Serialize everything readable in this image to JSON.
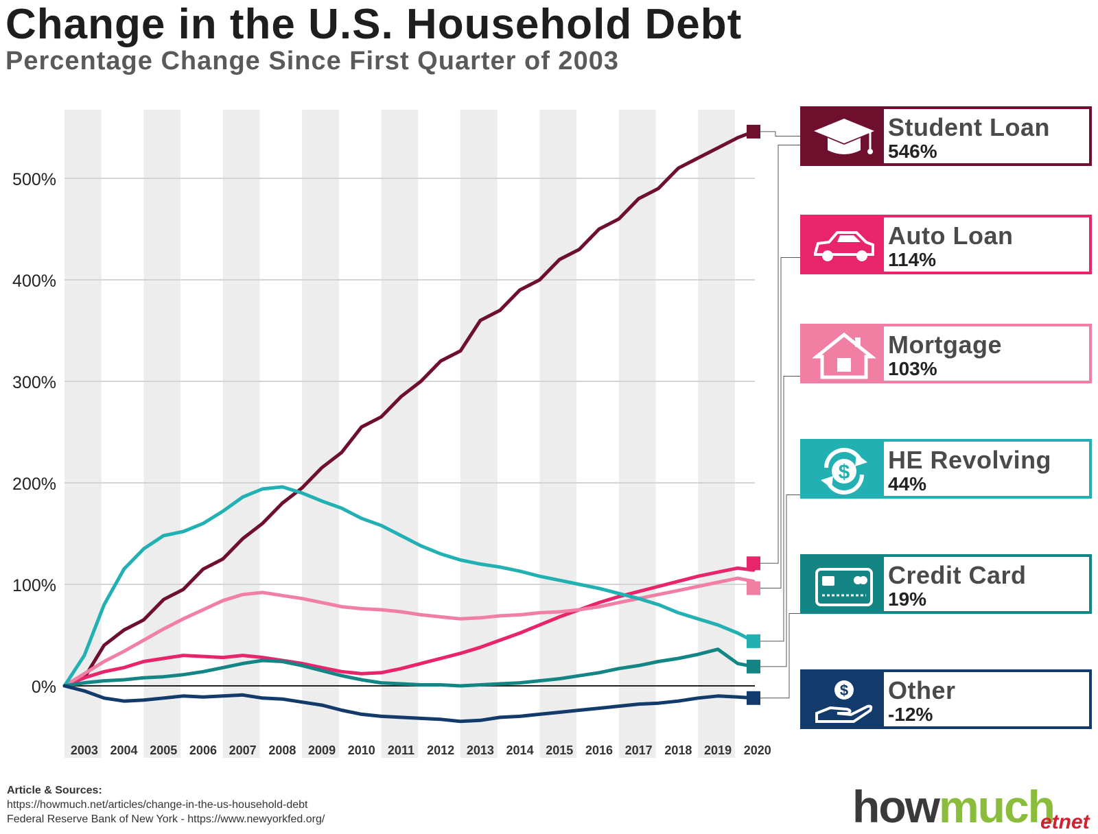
{
  "title": "Change in the U.S. Household Debt",
  "subtitle": "Percentage Change Since First Quarter of 2003",
  "chart_data": {
    "type": "line",
    "title": "Change in the U.S. Household Debt",
    "subtitle": "Percentage Change Since First Quarter of 2003",
    "x_categories": [
      "2003",
      "2004",
      "2005",
      "2006",
      "2007",
      "2008",
      "2009",
      "2010",
      "2011",
      "2012",
      "2013",
      "2014",
      "2015",
      "2016",
      "2017",
      "2018",
      "2019",
      "2020"
    ],
    "y_ticks": [
      0,
      100,
      200,
      300,
      400,
      500
    ],
    "y_tick_labels": [
      "0%",
      "100%",
      "200%",
      "300%",
      "400%",
      "500%"
    ],
    "ylim": [
      -40,
      560
    ],
    "alternating_year_bands": true,
    "legend_placement": "right",
    "series": [
      {
        "name": "Student Loan",
        "end_label": "546%",
        "color": "#6e0f2e",
        "x": [
          2003,
          2003.5,
          2004,
          2004.5,
          2005,
          2005.5,
          2006,
          2006.5,
          2007,
          2007.5,
          2008,
          2008.5,
          2009,
          2009.5,
          2010,
          2010.5,
          2011,
          2011.5,
          2012,
          2012.5,
          2013,
          2013.5,
          2014,
          2014.5,
          2015,
          2015.5,
          2016,
          2016.5,
          2017,
          2017.5,
          2018,
          2018.5,
          2019,
          2019.5,
          2020,
          2020.4
        ],
        "values": [
          0,
          8,
          40,
          55,
          65,
          85,
          95,
          115,
          125,
          145,
          160,
          180,
          195,
          215,
          230,
          255,
          265,
          285,
          300,
          320,
          330,
          360,
          370,
          390,
          400,
          420,
          430,
          450,
          460,
          480,
          490,
          510,
          520,
          530,
          540,
          546
        ]
      },
      {
        "name": "Auto Loan",
        "end_label": "114%",
        "color": "#e8246a",
        "x": [
          2003,
          2003.5,
          2004,
          2004.5,
          2005,
          2005.5,
          2006,
          2006.5,
          2007,
          2007.5,
          2008,
          2008.5,
          2009,
          2009.5,
          2010,
          2010.5,
          2011,
          2011.5,
          2012,
          2012.5,
          2013,
          2013.5,
          2014,
          2014.5,
          2015,
          2015.5,
          2016,
          2016.5,
          2017,
          2017.5,
          2018,
          2018.5,
          2019,
          2019.5,
          2020,
          2020.4
        ],
        "values": [
          0,
          8,
          14,
          18,
          24,
          27,
          30,
          29,
          28,
          30,
          28,
          25,
          22,
          18,
          14,
          12,
          13,
          17,
          22,
          27,
          32,
          38,
          45,
          52,
          60,
          68,
          75,
          82,
          88,
          93,
          98,
          103,
          108,
          112,
          116,
          114
        ]
      },
      {
        "name": "Mortgage",
        "end_label": "103%",
        "color": "#f07fa3",
        "x": [
          2003,
          2003.5,
          2004,
          2004.5,
          2005,
          2005.5,
          2006,
          2006.5,
          2007,
          2007.5,
          2008,
          2008.5,
          2009,
          2009.5,
          2010,
          2010.5,
          2011,
          2011.5,
          2012,
          2012.5,
          2013,
          2013.5,
          2014,
          2014.5,
          2015,
          2015.5,
          2016,
          2016.5,
          2017,
          2017.5,
          2018,
          2018.5,
          2019,
          2019.5,
          2020,
          2020.4
        ],
        "values": [
          0,
          12,
          24,
          34,
          45,
          56,
          66,
          75,
          84,
          90,
          92,
          89,
          86,
          82,
          78,
          76,
          75,
          73,
          70,
          68,
          66,
          67,
          69,
          70,
          72,
          73,
          75,
          78,
          82,
          86,
          90,
          94,
          98,
          102,
          106,
          103
        ]
      },
      {
        "name": "HE Revolving",
        "end_label": "44%",
        "color": "#22b0b2",
        "x": [
          2003,
          2003.5,
          2004,
          2004.5,
          2005,
          2005.5,
          2006,
          2006.5,
          2007,
          2007.5,
          2008,
          2008.5,
          2009,
          2009.5,
          2010,
          2010.5,
          2011,
          2011.5,
          2012,
          2012.5,
          2013,
          2013.5,
          2014,
          2014.5,
          2015,
          2015.5,
          2016,
          2016.5,
          2017,
          2017.5,
          2018,
          2018.5,
          2019,
          2019.5,
          2020,
          2020.4
        ],
        "values": [
          0,
          30,
          80,
          115,
          135,
          148,
          152,
          160,
          172,
          186,
          194,
          196,
          190,
          182,
          175,
          165,
          158,
          148,
          138,
          130,
          124,
          120,
          117,
          113,
          108,
          104,
          100,
          96,
          91,
          86,
          80,
          72,
          66,
          60,
          52,
          44
        ]
      },
      {
        "name": "Credit Card",
        "end_label": "19%",
        "color": "#138585",
        "x": [
          2003,
          2003.5,
          2004,
          2004.5,
          2005,
          2005.5,
          2006,
          2006.5,
          2007,
          2007.5,
          2008,
          2008.5,
          2009,
          2009.5,
          2010,
          2010.5,
          2011,
          2011.5,
          2012,
          2012.5,
          2013,
          2013.5,
          2014,
          2014.5,
          2015,
          2015.5,
          2016,
          2016.5,
          2017,
          2017.5,
          2018,
          2018.5,
          2019,
          2019.5,
          2020,
          2020.4
        ],
        "values": [
          0,
          3,
          5,
          6,
          8,
          9,
          11,
          14,
          18,
          22,
          25,
          24,
          20,
          15,
          10,
          6,
          3,
          2,
          1,
          1,
          0,
          1,
          2,
          3,
          5,
          7,
          10,
          13,
          17,
          20,
          24,
          27,
          31,
          36,
          22,
          19
        ]
      },
      {
        "name": "Other",
        "end_label": "-12%",
        "color": "#123a6b",
        "x": [
          2003,
          2003.5,
          2004,
          2004.5,
          2005,
          2005.5,
          2006,
          2006.5,
          2007,
          2007.5,
          2008,
          2008.5,
          2009,
          2009.5,
          2010,
          2010.5,
          2011,
          2011.5,
          2012,
          2012.5,
          2013,
          2013.5,
          2014,
          2014.5,
          2015,
          2015.5,
          2016,
          2016.5,
          2017,
          2017.5,
          2018,
          2018.5,
          2019,
          2019.5,
          2020,
          2020.4
        ],
        "values": [
          0,
          -5,
          -12,
          -15,
          -14,
          -12,
          -10,
          -11,
          -10,
          -9,
          -12,
          -13,
          -16,
          -19,
          -24,
          -28,
          -30,
          -31,
          -32,
          -33,
          -35,
          -34,
          -31,
          -30,
          -28,
          -26,
          -24,
          -22,
          -20,
          -18,
          -17,
          -15,
          -12,
          -10,
          -11,
          -12
        ]
      }
    ]
  },
  "legend": [
    {
      "name": "Student Loan",
      "value": "546%",
      "color": "#6e0f2e",
      "icon": "graduation-cap-icon"
    },
    {
      "name": "Auto Loan",
      "value": "114%",
      "color": "#e8246a",
      "icon": "car-icon"
    },
    {
      "name": "Mortgage",
      "value": "103%",
      "color": "#f07fa3",
      "icon": "house-icon"
    },
    {
      "name": "HE Revolving",
      "value": "44%",
      "color": "#22b0b2",
      "icon": "dollar-cycle-icon"
    },
    {
      "name": "Credit Card",
      "value": "19%",
      "color": "#138585",
      "icon": "credit-card-icon"
    },
    {
      "name": "Other",
      "value": "-12%",
      "color": "#123a6b",
      "icon": "hand-coin-icon"
    }
  ],
  "sources": {
    "heading": "Article & Sources:",
    "line1": "https://howmuch.net/articles/change-in-the-us-household-debt",
    "line2": "Federal Reserve Bank of New York - https://www.newyorkfed.org/"
  },
  "brand": {
    "part1": "how",
    "part2": "much",
    "sub": "etnet"
  }
}
